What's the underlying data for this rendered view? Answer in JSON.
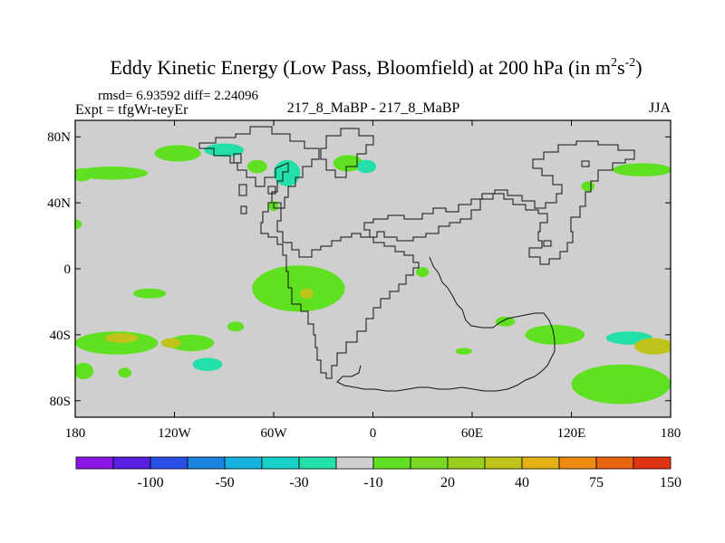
{
  "chart_data": {
    "type": "heatmap",
    "title_main": "Eddy Kinetic Energy (Low Pass, Bloomfield) at 200 hPa (in m",
    "title_sup1": "2",
    "title_mid": "s",
    "title_sup2": "-2",
    "title_end": ")",
    "stats": "rmsd= 6.93592 diff= 2.24096",
    "expt": "Expt = tfgWr-teyEr",
    "case": "217_8_MaBP - 217_8_MaBP",
    "season": "JJA",
    "y_ticks": [
      {
        "lat": 80,
        "label": "80N"
      },
      {
        "lat": 40,
        "label": "40N"
      },
      {
        "lat": 0,
        "label": "0"
      },
      {
        "lat": -40,
        "label": "40S"
      },
      {
        "lat": -80,
        "label": "80S"
      }
    ],
    "x_ticks": [
      {
        "lon": -180,
        "label": "180"
      },
      {
        "lon": -120,
        "label": "120W"
      },
      {
        "lon": -60,
        "label": "60W"
      },
      {
        "lon": 0,
        "label": "0"
      },
      {
        "lon": 60,
        "label": "60E"
      },
      {
        "lon": 120,
        "label": "120E"
      },
      {
        "lon": 180,
        "label": "180"
      }
    ],
    "xlim": [
      -180,
      180
    ],
    "ylim": [
      -90,
      90
    ],
    "background_level_color": "#cfcfcf",
    "colorbar": {
      "colors": [
        "#8a17e6",
        "#5a1fe0",
        "#2a4fe6",
        "#1a84e0",
        "#15b2e0",
        "#18d2c9",
        "#23dfa8",
        "#cfcfcf",
        "#5fe021",
        "#7ad722",
        "#9ccf1f",
        "#c0c41a",
        "#e2b313",
        "#ec8b0f",
        "#e8640f",
        "#df3311"
      ],
      "labels": [
        {
          "after_index": 1,
          "label": "-100"
        },
        {
          "after_index": 3,
          "label": "-50"
        },
        {
          "after_index": 5,
          "label": "-30"
        },
        {
          "after_index": 7,
          "label": "-10"
        },
        {
          "after_index": 9,
          "label": "20"
        },
        {
          "after_index": 11,
          "label": "40"
        },
        {
          "after_index": 13,
          "label": "75"
        },
        {
          "after_index": 15,
          "label": "150"
        }
      ]
    },
    "regions": [
      {
        "name": "green-na-arctic",
        "level": 20,
        "lon": -118,
        "lat": 70,
        "rlon": 14,
        "rlat": 5
      },
      {
        "name": "green-nw-pac",
        "level": 20,
        "lon": -158,
        "lat": 58,
        "rlon": 22,
        "rlat": 4
      },
      {
        "name": "green-nw-pac2",
        "level": 20,
        "lon": -176,
        "lat": 57,
        "rlon": 6,
        "rlat": 4
      },
      {
        "name": "green-ne-euro",
        "level": 20,
        "lon": -15,
        "lat": 64,
        "rlon": 9,
        "rlat": 5
      },
      {
        "name": "cyan-canada",
        "level": -10,
        "lon": -90,
        "lat": 72,
        "rlon": 12,
        "rlat": 4
      },
      {
        "name": "cyan-greenland",
        "level": -10,
        "lon": -52,
        "lat": 58,
        "rlon": 8,
        "rlat": 8
      },
      {
        "name": "cyan-scandinavia",
        "level": -10,
        "lon": -4,
        "lat": 62,
        "rlon": 6,
        "rlat": 4
      },
      {
        "name": "green-labrador",
        "level": 20,
        "lon": -70,
        "lat": 62,
        "rlon": 6,
        "rlat": 4
      },
      {
        "name": "green-n-atl-small",
        "level": 20,
        "lon": -60,
        "lat": 38,
        "rlon": 3,
        "rlat": 3
      },
      {
        "name": "green-nw-atl-tiny",
        "level": 20,
        "lon": -180,
        "lat": 27,
        "rlon": 4,
        "rlat": 3
      },
      {
        "name": "green-eastasia",
        "level": 20,
        "lon": 163,
        "lat": 60,
        "rlon": 18,
        "rlat": 4
      },
      {
        "name": "green-china",
        "level": 20,
        "lon": 130,
        "lat": 50,
        "rlon": 4,
        "rlat": 3
      },
      {
        "name": "green-eq-atl",
        "level": 20,
        "lon": -45,
        "lat": -12,
        "rlon": 28,
        "rlat": 14
      },
      {
        "name": "yellow-eq-atl",
        "level": 40,
        "lon": -40,
        "lat": -15,
        "rlon": 4,
        "rlat": 3
      },
      {
        "name": "green-eq-pac",
        "level": 20,
        "lon": -135,
        "lat": -15,
        "rlon": 10,
        "rlat": 3
      },
      {
        "name": "green-afr",
        "level": 20,
        "lon": 30,
        "lat": -2,
        "rlon": 4,
        "rlat": 3
      },
      {
        "name": "green-south-band1",
        "level": 20,
        "lon": -155,
        "lat": -45,
        "rlon": 25,
        "rlat": 7
      },
      {
        "name": "green-south-band2",
        "level": 20,
        "lon": -110,
        "lat": -45,
        "rlon": 14,
        "rlat": 5
      },
      {
        "name": "green-south-tail",
        "level": 20,
        "lon": -175,
        "lat": -62,
        "rlon": 6,
        "rlat": 5
      },
      {
        "name": "yellow-south1",
        "level": 40,
        "lon": -152,
        "lat": -42,
        "rlon": 10,
        "rlat": 3
      },
      {
        "name": "yellow-south2",
        "level": 40,
        "lon": -122,
        "lat": -45,
        "rlon": 6,
        "rlat": 3
      },
      {
        "name": "cyan-south-pac",
        "level": -10,
        "lon": -100,
        "lat": -58,
        "rlon": 9,
        "rlat": 4
      },
      {
        "name": "green-south-dot",
        "level": 20,
        "lon": -150,
        "lat": -63,
        "rlon": 4,
        "rlat": 3
      },
      {
        "name": "green-s-pac-mid",
        "level": 20,
        "lon": -83,
        "lat": -35,
        "rlon": 5,
        "rlat": 3
      },
      {
        "name": "green-indian",
        "level": 20,
        "lon": 110,
        "lat": -40,
        "rlon": 18,
        "rlat": 6
      },
      {
        "name": "cyan-indian",
        "level": -10,
        "lon": 155,
        "lat": -42,
        "rlon": 14,
        "rlat": 4
      },
      {
        "name": "green-se-pac",
        "level": 20,
        "lon": 150,
        "lat": -70,
        "rlon": 30,
        "rlat": 12
      },
      {
        "name": "orange-se-pac",
        "level": 75,
        "lon": 172,
        "lat": -47,
        "rlon": 8,
        "rlat": 3
      },
      {
        "name": "yellow-se-pac",
        "level": 40,
        "lon": 170,
        "lat": -47,
        "rlon": 12,
        "rlat": 5
      },
      {
        "name": "green-s-atl",
        "level": 20,
        "lon": 55,
        "lat": -50,
        "rlon": 5,
        "rlat": 2
      },
      {
        "name": "green-indian2",
        "level": 20,
        "lon": 80,
        "lat": -32,
        "rlon": 6,
        "rlat": 3
      }
    ]
  }
}
